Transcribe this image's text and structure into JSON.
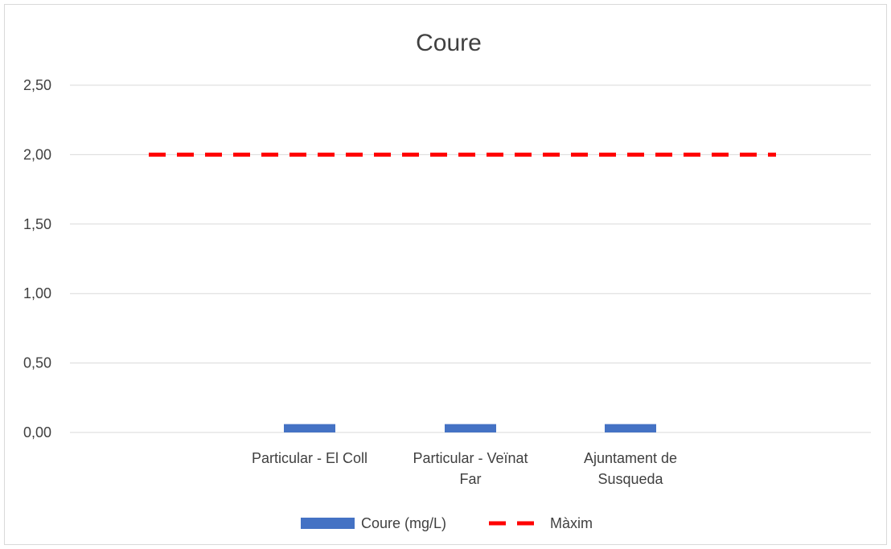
{
  "chart_data": {
    "type": "bar",
    "title": "Coure",
    "xlabel": "",
    "ylabel": "",
    "ylim": [
      0,
      2.5
    ],
    "yticks": [
      "0,00",
      "0,50",
      "1,00",
      "1,50",
      "2,00",
      "2,50"
    ],
    "ytick_values": [
      0,
      0.5,
      1,
      1.5,
      2,
      2.5
    ],
    "categories": [
      [
        "Particular - El Coll"
      ],
      [
        "Particular - Veïnat",
        "Far"
      ],
      [
        "Ajuntament de",
        "Susqueda"
      ]
    ],
    "series": [
      {
        "name": "Coure (mg/L)",
        "type": "bar",
        "color": "#4472c4",
        "values": [
          0.06,
          0.06,
          0.06
        ]
      },
      {
        "name": "Màxim",
        "type": "line",
        "style": "dashed",
        "color": "#ff0000",
        "values": [
          2,
          2,
          2
        ]
      }
    ],
    "grid": true,
    "legend_position": "bottom"
  }
}
